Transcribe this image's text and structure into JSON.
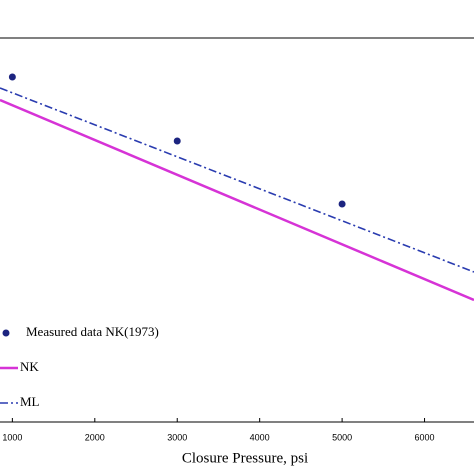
{
  "chart_data": {
    "type": "line",
    "x_label": "Closure Pressure, psi",
    "xlim": [
      850,
      6600
    ],
    "xticks": [
      1000,
      2000,
      3000,
      4000,
      5000,
      6000
    ],
    "ylim": [
      0,
      384
    ],
    "legend": "lower-left",
    "series": [
      {
        "name": "Measured data NK(1973)",
        "color": "#1c2480",
        "mode": "markers",
        "x": [
          1000,
          3000,
          5000
        ],
        "values": [
          345,
          281,
          218
        ]
      },
      {
        "name": "NK",
        "color": "#d633d6",
        "mode": "solid",
        "x": [
          850,
          6600
        ],
        "values": [
          322,
          122
        ]
      },
      {
        "name": "ML",
        "color": "#2a3cb0",
        "mode": "dashdot",
        "x": [
          850,
          6600
        ],
        "values": [
          334,
          150
        ]
      }
    ]
  }
}
